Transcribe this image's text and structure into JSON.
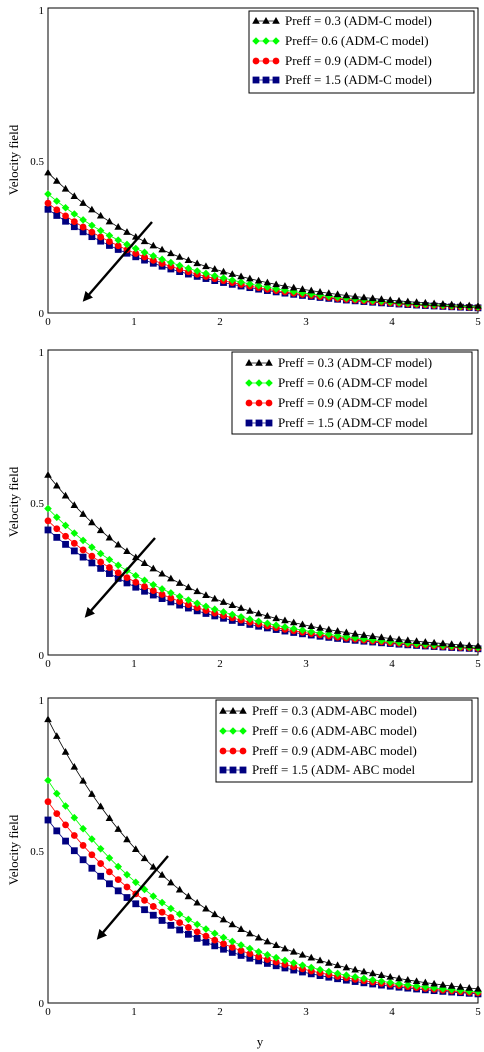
{
  "chart_data": [
    {
      "type": "line",
      "title": "",
      "xlabel": "",
      "ylabel": "Velocity field",
      "xlim": [
        0,
        5
      ],
      "ylim": [
        0,
        1
      ],
      "xticks": [
        "0",
        "1",
        "2",
        "3",
        "4",
        "5"
      ],
      "yticks": [
        "0",
        "0.5",
        "1"
      ],
      "legend_position": "top-right",
      "series": [
        {
          "name": "Preff = 0.3  (ADM-C model)",
          "color": "#000000",
          "marker": "triangle",
          "y0": 0.46
        },
        {
          "name": "Preff= 0.6  (ADM-C model)",
          "color": "#00ff00",
          "marker": "diamond",
          "y0": 0.39
        },
        {
          "name": "Preff = 0.9  (ADM-C model)",
          "color": "#ff0000",
          "marker": "circle",
          "y0": 0.36
        },
        {
          "name": "Preff = 1.5  (ADM-C model)",
          "color": "#000080",
          "marker": "square",
          "y0": 0.34
        }
      ]
    },
    {
      "type": "line",
      "title": "",
      "xlabel": "",
      "ylabel": "Velocity field",
      "xlim": [
        0,
        5
      ],
      "ylim": [
        0,
        1
      ],
      "xticks": [
        "0",
        "1",
        "2",
        "3",
        "4",
        "5"
      ],
      "yticks": [
        "0",
        "0.5",
        "1"
      ],
      "legend_position": "top-right",
      "series": [
        {
          "name": "Preff = 0.3  (ADM-CF model)",
          "color": "#000000",
          "marker": "triangle",
          "y0": 0.59
        },
        {
          "name": "Preff = 0.6  (ADM-CF model",
          "color": "#00ff00",
          "marker": "diamond",
          "y0": 0.48
        },
        {
          "name": "Preff = 0.9  (ADM-CF model",
          "color": "#ff0000",
          "marker": "circle",
          "y0": 0.44
        },
        {
          "name": "Preff = 1.5  (ADM-CF model",
          "color": "#000080",
          "marker": "square",
          "y0": 0.41
        }
      ]
    },
    {
      "type": "line",
      "title": "",
      "xlabel": "y",
      "ylabel": "Velocity field",
      "xlim": [
        0,
        5
      ],
      "ylim": [
        0,
        1
      ],
      "xticks": [
        "0",
        "1",
        "2",
        "3",
        "4",
        "5"
      ],
      "yticks": [
        "0",
        "0.5",
        "1"
      ],
      "legend_position": "top-right",
      "series": [
        {
          "name": "Preff = 0.3  (ADM-ABC model)",
          "color": "#000000",
          "marker": "triangle",
          "y0": 0.93
        },
        {
          "name": "Preff = 0.6  (ADM-ABC model)",
          "color": "#00ff00",
          "marker": "diamond",
          "y0": 0.73
        },
        {
          "name": "Preff = 0.9  (ADM-ABC model)",
          "color": "#ff0000",
          "marker": "circle",
          "y0": 0.66
        },
        {
          "name": "Preff = 1.5  (ADM- ABC model",
          "color": "#000080",
          "marker": "square",
          "y0": 0.6
        }
      ]
    }
  ]
}
